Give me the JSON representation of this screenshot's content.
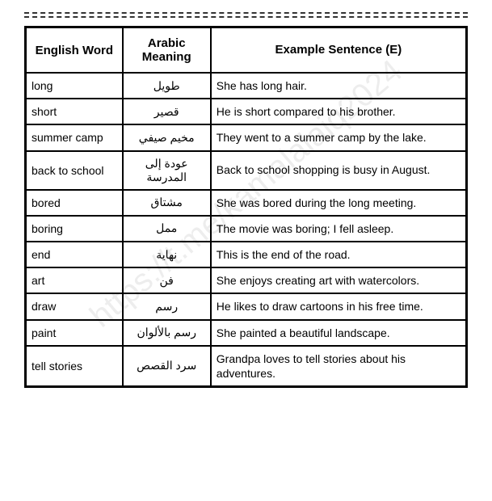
{
  "watermark": "https://t.me/kamalalaiq2024",
  "table": {
    "headers": {
      "english": "English Word",
      "arabic": "Arabic Meaning",
      "example": "Example Sentence (E)"
    },
    "rows": [
      {
        "english": "long",
        "arabic": "طويل",
        "example": "She has long hair."
      },
      {
        "english": "short",
        "arabic": "قصير",
        "example": "He is short compared to his brother."
      },
      {
        "english": "summer camp",
        "arabic": "مخيم صيفي",
        "example": "They went to a summer camp by the lake."
      },
      {
        "english": "back to school",
        "arabic": "عودة إلى المدرسة",
        "example": "Back to school shopping is busy in August."
      },
      {
        "english": "bored",
        "arabic": "مشتاق",
        "example": "She was bored during the long meeting."
      },
      {
        "english": "boring",
        "arabic": "ممل",
        "example": "The movie was boring; I fell asleep."
      },
      {
        "english": "end",
        "arabic": "نهاية",
        "example": "This is the end of the road."
      },
      {
        "english": "art",
        "arabic": "فن",
        "example": "She enjoys creating art with watercolors."
      },
      {
        "english": "draw",
        "arabic": "رسم",
        "example": "He likes to draw cartoons in his free time."
      },
      {
        "english": "paint",
        "arabic": "رسم بالألوان",
        "example": "She painted a beautiful landscape."
      },
      {
        "english": "tell stories",
        "arabic": "سرد القصص",
        "example": "Grandpa loves to tell stories about his adventures."
      }
    ]
  }
}
